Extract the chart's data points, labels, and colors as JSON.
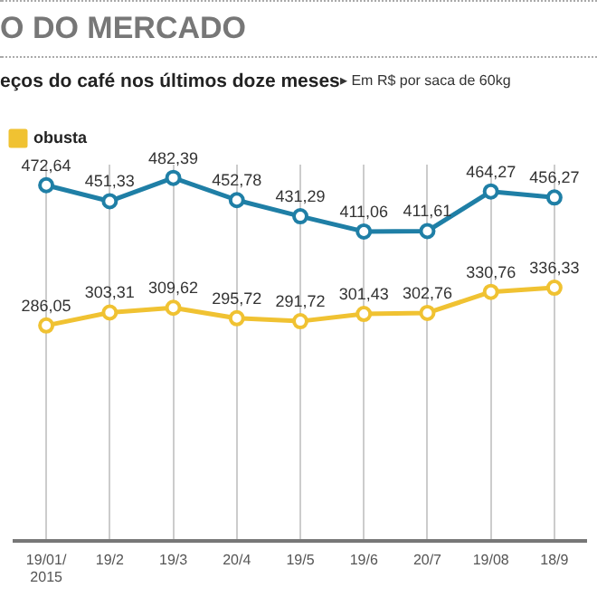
{
  "chart_data": {
    "type": "line",
    "title": "O DO MERCADO",
    "subtitle": "eços do café nos últimos doze meses",
    "annotations": [
      "▸ Em R$ por saca de 60kg"
    ],
    "categories": [
      "19/01/ 2015",
      "19/2",
      "19/3",
      "20/4",
      "19/5",
      "19/6",
      "20/7",
      "19/08",
      "18/9"
    ],
    "series": [
      {
        "color": "#1f7fa6",
        "values": [
          472.64,
          451.33,
          482.39,
          452.78,
          431.29,
          411.06,
          411.61,
          464.27,
          456.27
        ],
        "value_labels": [
          "472,64",
          "451,33",
          "482,39",
          "452,78",
          "431,29",
          "411,06",
          "411,61",
          "464,27",
          "456,27"
        ]
      },
      {
        "name": "obusta",
        "color": "#f0c232",
        "values": [
          286.05,
          303.31,
          309.62,
          295.72,
          291.72,
          301.43,
          302.76,
          330.76,
          336.33
        ],
        "value_labels": [
          "286,05",
          "303,31",
          "309,62",
          "295,72",
          "291,72",
          "301,43",
          "302,76",
          "330,76",
          "336,33"
        ]
      }
    ],
    "grid": "x",
    "legend": "top left",
    "marker": "circle",
    "line_style": "solid",
    "tick_labels": "x"
  }
}
